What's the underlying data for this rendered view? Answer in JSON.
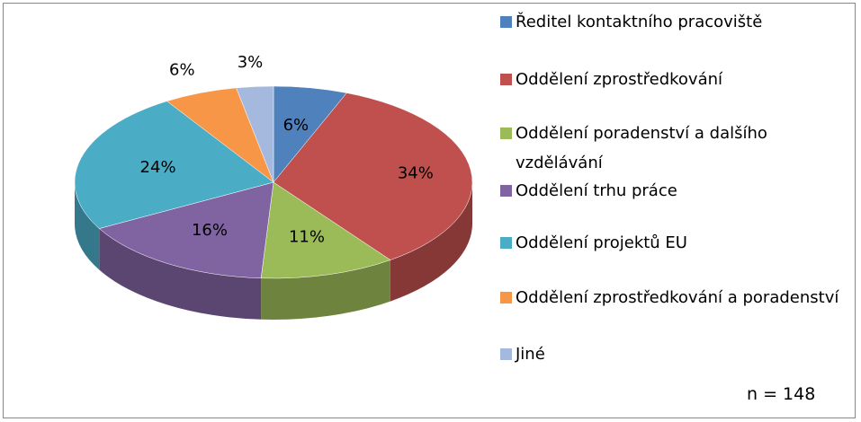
{
  "chart_data": {
    "type": "pie",
    "categories": [
      "Ředitel kontaktního pracoviště",
      "Oddělení zprostředkování",
      "Oddělení poradenství a dalšího vzdělávání",
      "Oddělení trhu práce",
      "Oddělení projektů EU",
      "Oddělení zprostředkování a poradenství",
      "Jiné"
    ],
    "values": [
      6,
      34,
      11,
      16,
      24,
      6,
      3
    ],
    "value_labels": [
      "6%",
      "34%",
      "11%",
      "16%",
      "24%",
      "6%",
      "3%"
    ],
    "colors": [
      "#4f81bd",
      "#c0504d",
      "#9bbb59",
      "#8064a2",
      "#4bacc6",
      "#f79646",
      "#a5b8dd"
    ],
    "annotation": "n = 148"
  }
}
